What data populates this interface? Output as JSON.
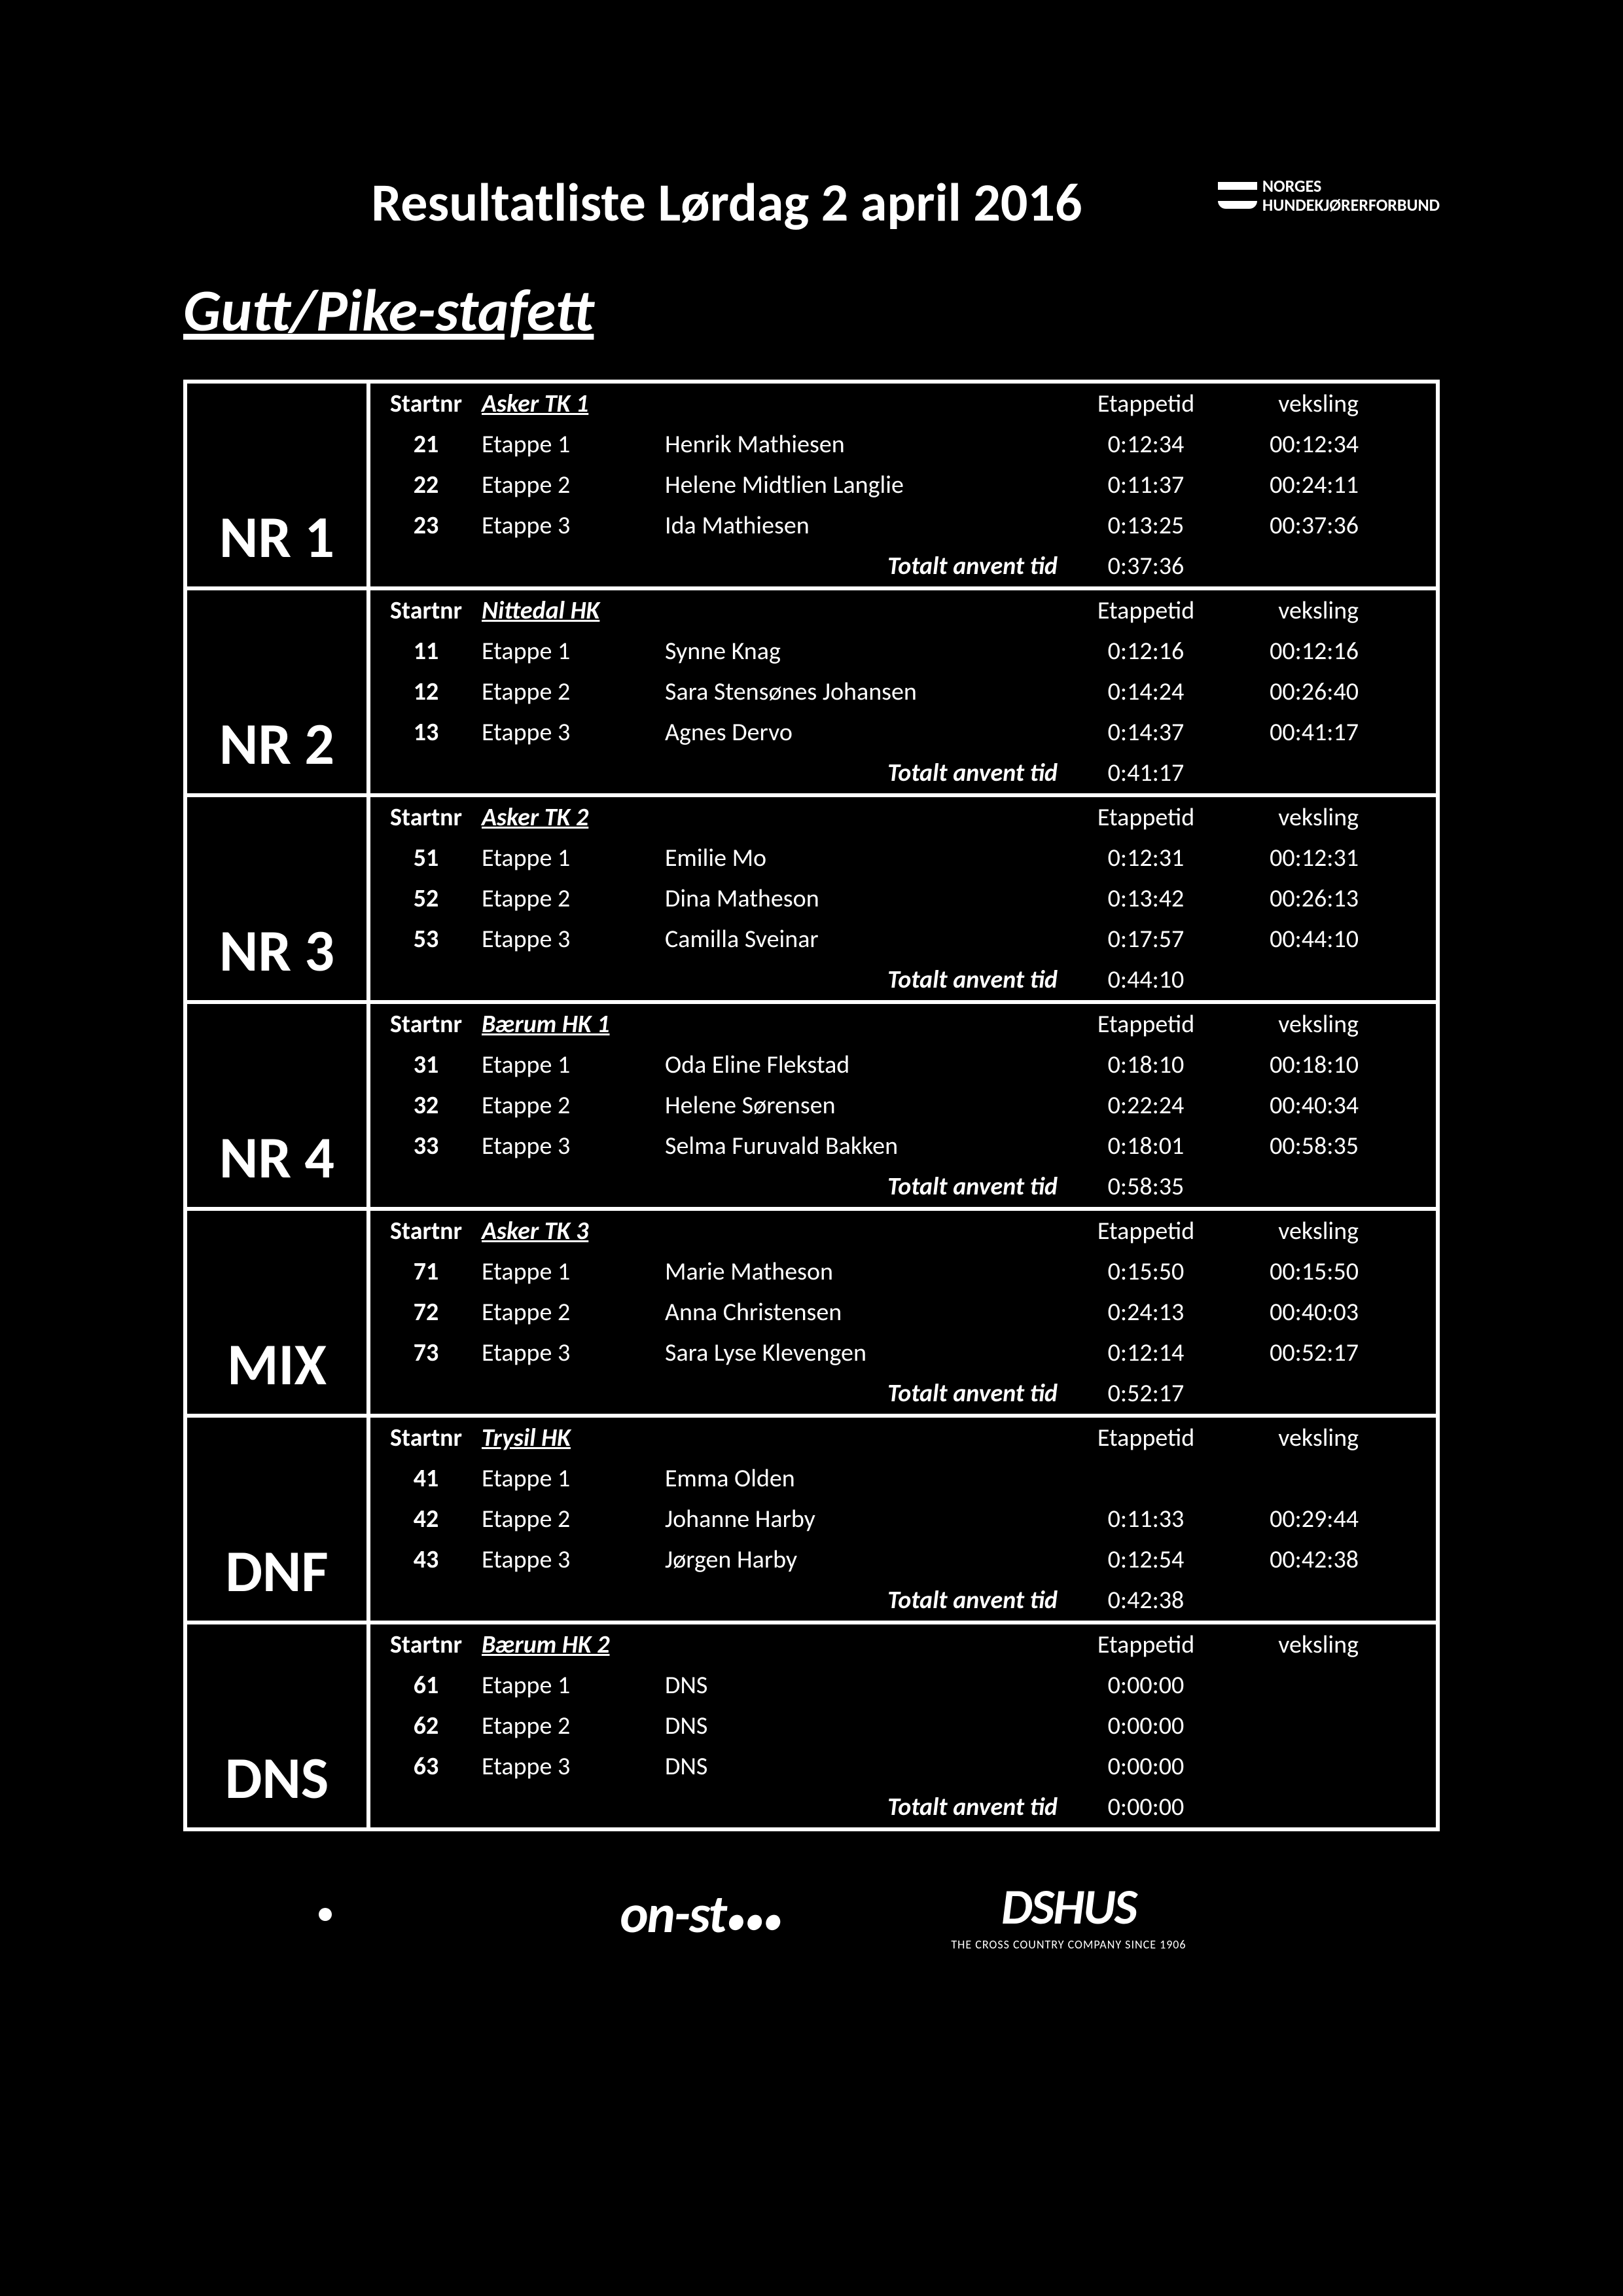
{
  "title": "Resultatliste Lørdag 2 april 2016",
  "org_line1": "NORGES",
  "org_line2": "HUNDEKJØRERFORBUND",
  "category": "Gutt/Pike-stafett",
  "col_start": "Startnr",
  "col_etappetid": "Etappetid",
  "col_veksling": "veksling",
  "totalt_label": "Totalt anvent tid",
  "teams": [
    {
      "rank": "NR 1",
      "club": "Asker TK 1",
      "total": "0:37:36",
      "rows": [
        {
          "nr": "21",
          "etappe": "Etappe 1",
          "name": "Henrik Mathiesen",
          "et": "0:12:34",
          "vx": "00:12:34"
        },
        {
          "nr": "22",
          "etappe": "Etappe 2",
          "name": "Helene Midtlien Langlie",
          "et": "0:11:37",
          "vx": "00:24:11"
        },
        {
          "nr": "23",
          "etappe": "Etappe 3",
          "name": "Ida Mathiesen",
          "et": "0:13:25",
          "vx": "00:37:36"
        }
      ]
    },
    {
      "rank": "NR 2",
      "club": "Nittedal HK",
      "total": "0:41:17",
      "rows": [
        {
          "nr": "11",
          "etappe": "Etappe 1",
          "name": "Synne Knag",
          "et": "0:12:16",
          "vx": "00:12:16"
        },
        {
          "nr": "12",
          "etappe": "Etappe 2",
          "name": "Sara Stensønes Johansen",
          "et": "0:14:24",
          "vx": "00:26:40"
        },
        {
          "nr": "13",
          "etappe": "Etappe 3",
          "name": "Agnes Dervo",
          "et": "0:14:37",
          "vx": "00:41:17"
        }
      ]
    },
    {
      "rank": "NR 3",
      "club": "Asker TK 2",
      "total": "0:44:10",
      "rows": [
        {
          "nr": "51",
          "etappe": "Etappe 1",
          "name": "Emilie Mo",
          "et": "0:12:31",
          "vx": "00:12:31"
        },
        {
          "nr": "52",
          "etappe": "Etappe 2",
          "name": "Dina Matheson",
          "et": "0:13:42",
          "vx": "00:26:13"
        },
        {
          "nr": "53",
          "etappe": "Etappe 3",
          "name": "Camilla Sveinar",
          "et": "0:17:57",
          "vx": "00:44:10"
        }
      ]
    },
    {
      "rank": "NR 4",
      "club": "Bærum HK 1",
      "total": "0:58:35",
      "rows": [
        {
          "nr": "31",
          "etappe": "Etappe 1",
          "name": "Oda Eline Flekstad",
          "et": "0:18:10",
          "vx": "00:18:10"
        },
        {
          "nr": "32",
          "etappe": "Etappe 2",
          "name": "Helene Sørensen",
          "et": "0:22:24",
          "vx": "00:40:34"
        },
        {
          "nr": "33",
          "etappe": "Etappe 3",
          "name": "Selma Furuvald Bakken",
          "et": "0:18:01",
          "vx": "00:58:35"
        }
      ]
    },
    {
      "rank": "MIX",
      "club": "Asker TK 3",
      "total": "0:52:17",
      "rows": [
        {
          "nr": "71",
          "etappe": "Etappe 1",
          "name": "Marie Matheson",
          "et": "0:15:50",
          "vx": "00:15:50"
        },
        {
          "nr": "72",
          "etappe": "Etappe 2",
          "name": "Anna Christensen",
          "et": "0:24:13",
          "vx": "00:40:03"
        },
        {
          "nr": "73",
          "etappe": "Etappe 3",
          "name": "Sara Lyse Klevengen",
          "et": "0:12:14",
          "vx": "00:52:17"
        }
      ]
    },
    {
      "rank": "DNF",
      "club": "Trysil HK",
      "total": "0:42:38",
      "rows": [
        {
          "nr": "41",
          "etappe": "Etappe 1",
          "name": "Emma Olden",
          "et": "",
          "vx": ""
        },
        {
          "nr": "42",
          "etappe": "Etappe 2",
          "name": "Johanne Harby",
          "et": "0:11:33",
          "vx": "00:29:44"
        },
        {
          "nr": "43",
          "etappe": "Etappe 3",
          "name": "Jørgen Harby",
          "et": "0:12:54",
          "vx": "00:42:38"
        }
      ]
    },
    {
      "rank": "DNS",
      "club": "Bærum HK 2",
      "total": "0:00:00",
      "rows": [
        {
          "nr": "61",
          "etappe": "Etappe 1",
          "name": "DNS",
          "et": "0:00:00",
          "vx": ""
        },
        {
          "nr": "62",
          "etappe": "Etappe 2",
          "name": "DNS",
          "et": "0:00:00",
          "vx": ""
        },
        {
          "nr": "63",
          "etappe": "Etappe 3",
          "name": "DNS",
          "et": "0:00:00",
          "vx": ""
        }
      ]
    }
  ],
  "footer": {
    "onst": "on-st",
    "onst_dots": "●●●",
    "dshus": "DSHUS",
    "dshus_sub": "THE CROSS COUNTRY COMPANY SINCE 1906"
  }
}
